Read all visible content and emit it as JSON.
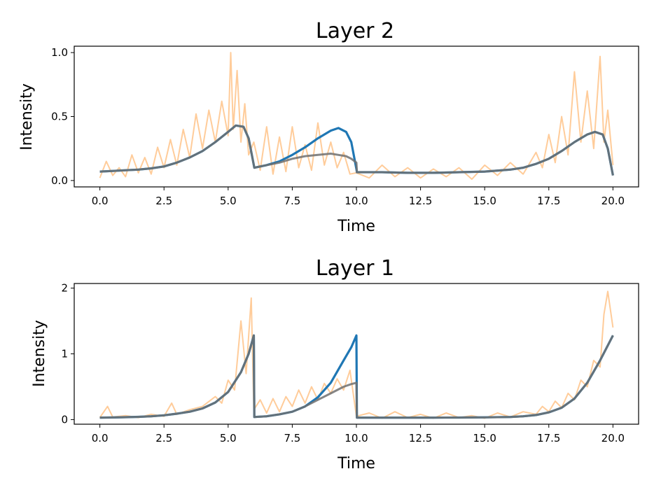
{
  "chart_data": [
    {
      "type": "line",
      "title": "Layer 2",
      "xlabel": "Time",
      "ylabel": "Intensity",
      "xlim": [
        -1.0,
        21.0
      ],
      "ylim": [
        -0.05,
        1.05
      ],
      "xticks": [
        "0.0",
        "2.5",
        "5.0",
        "7.5",
        "10.0",
        "12.5",
        "15.0",
        "17.5",
        "20.0"
      ],
      "yticks": [
        "0.0",
        "0.5",
        "1.0"
      ],
      "grid": false,
      "series": [
        {
          "role": "model",
          "color": "#1f77b4",
          "x": [
            0,
            0.5,
            1,
            1.5,
            2,
            2.5,
            3,
            3.5,
            4,
            4.5,
            5,
            5.3,
            5.6,
            5.8,
            6.0,
            6.02,
            6.5,
            7,
            7.5,
            8,
            8.5,
            9,
            9.3,
            9.6,
            9.8,
            10.0,
            10.02,
            11,
            12,
            13,
            14,
            15,
            16,
            16.5,
            17,
            17.5,
            18,
            18.5,
            19,
            19.3,
            19.6,
            19.8,
            20.0
          ],
          "y": [
            0.07,
            0.075,
            0.08,
            0.085,
            0.095,
            0.11,
            0.14,
            0.18,
            0.23,
            0.3,
            0.38,
            0.43,
            0.42,
            0.33,
            0.12,
            0.1,
            0.12,
            0.15,
            0.2,
            0.26,
            0.33,
            0.39,
            0.41,
            0.38,
            0.3,
            0.09,
            0.065,
            0.065,
            0.06,
            0.06,
            0.065,
            0.07,
            0.085,
            0.1,
            0.13,
            0.17,
            0.23,
            0.3,
            0.36,
            0.38,
            0.36,
            0.25,
            0.04
          ]
        },
        {
          "role": "smoothed",
          "color": "#707070",
          "x": [
            0,
            0.5,
            1,
            1.5,
            2,
            2.5,
            3,
            3.5,
            4,
            4.5,
            5,
            5.3,
            5.6,
            5.8,
            6.0,
            6.02,
            6.5,
            7,
            7.5,
            8,
            8.5,
            9,
            9.3,
            9.6,
            9.8,
            10.0,
            10.02,
            11,
            12,
            13,
            14,
            15,
            16,
            16.5,
            17,
            17.5,
            18,
            18.5,
            19,
            19.3,
            19.6,
            19.8,
            20.0
          ],
          "y": [
            0.07,
            0.075,
            0.08,
            0.085,
            0.095,
            0.11,
            0.14,
            0.18,
            0.23,
            0.3,
            0.38,
            0.43,
            0.42,
            0.33,
            0.12,
            0.1,
            0.12,
            0.14,
            0.17,
            0.19,
            0.2,
            0.21,
            0.2,
            0.19,
            0.17,
            0.14,
            0.065,
            0.065,
            0.06,
            0.06,
            0.065,
            0.07,
            0.085,
            0.1,
            0.13,
            0.17,
            0.23,
            0.3,
            0.36,
            0.38,
            0.36,
            0.25,
            0.04
          ]
        },
        {
          "role": "observed",
          "color": "#ffbb78",
          "x": [
            0,
            0.25,
            0.5,
            0.75,
            1.0,
            1.25,
            1.5,
            1.75,
            2.0,
            2.25,
            2.5,
            2.75,
            3.0,
            3.25,
            3.5,
            3.75,
            4.0,
            4.25,
            4.5,
            4.75,
            5.0,
            5.1,
            5.2,
            5.35,
            5.5,
            5.65,
            5.8,
            6.0,
            6.25,
            6.5,
            6.75,
            7.0,
            7.25,
            7.5,
            7.75,
            8.0,
            8.25,
            8.5,
            8.75,
            9.0,
            9.25,
            9.5,
            9.75,
            10.0,
            10.5,
            11.0,
            11.5,
            12.0,
            12.5,
            13.0,
            13.5,
            14.0,
            14.5,
            15.0,
            15.5,
            16.0,
            16.5,
            17.0,
            17.25,
            17.5,
            17.75,
            18.0,
            18.25,
            18.5,
            18.75,
            19.0,
            19.25,
            19.5,
            19.65,
            19.8,
            20.0
          ],
          "y": [
            0.02,
            0.15,
            0.04,
            0.1,
            0.03,
            0.2,
            0.06,
            0.18,
            0.05,
            0.26,
            0.1,
            0.32,
            0.12,
            0.4,
            0.18,
            0.52,
            0.25,
            0.55,
            0.3,
            0.62,
            0.35,
            1.0,
            0.4,
            0.86,
            0.3,
            0.6,
            0.2,
            0.3,
            0.08,
            0.42,
            0.05,
            0.34,
            0.07,
            0.42,
            0.1,
            0.28,
            0.08,
            0.45,
            0.12,
            0.3,
            0.1,
            0.22,
            0.05,
            0.06,
            0.02,
            0.12,
            0.03,
            0.1,
            0.02,
            0.09,
            0.03,
            0.1,
            0.01,
            0.12,
            0.04,
            0.14,
            0.05,
            0.22,
            0.1,
            0.36,
            0.14,
            0.5,
            0.2,
            0.85,
            0.3,
            0.7,
            0.25,
            0.97,
            0.3,
            0.55,
            0.12
          ]
        }
      ]
    },
    {
      "type": "line",
      "title": "Layer 1",
      "xlabel": "Time",
      "ylabel": "Intensity",
      "xlim": [
        -1.0,
        21.0
      ],
      "ylim": [
        -0.07,
        2.07
      ],
      "xticks": [
        "0.0",
        "2.5",
        "5.0",
        "7.5",
        "10.0",
        "12.5",
        "15.0",
        "17.5",
        "20.0"
      ],
      "yticks": [
        "0",
        "1",
        "2"
      ],
      "grid": false,
      "series": [
        {
          "role": "model",
          "color": "#1f77b4",
          "x": [
            0,
            0.5,
            1,
            1.5,
            2,
            2.5,
            3,
            3.5,
            4,
            4.5,
            5,
            5.5,
            5.8,
            6.0,
            6.02,
            6.5,
            7,
            7.5,
            8,
            8.5,
            9,
            9.5,
            9.8,
            10.0,
            10.02,
            11,
            12,
            13,
            14,
            15,
            16,
            16.5,
            17,
            17.5,
            18,
            18.5,
            19,
            19.5,
            20.0
          ],
          "y": [
            0.03,
            0.032,
            0.036,
            0.042,
            0.05,
            0.065,
            0.09,
            0.12,
            0.17,
            0.26,
            0.42,
            0.72,
            1.0,
            1.28,
            0.04,
            0.05,
            0.08,
            0.12,
            0.2,
            0.34,
            0.56,
            0.9,
            1.1,
            1.28,
            0.03,
            0.03,
            0.03,
            0.03,
            0.031,
            0.034,
            0.04,
            0.05,
            0.07,
            0.11,
            0.18,
            0.32,
            0.56,
            0.9,
            1.28
          ]
        },
        {
          "role": "smoothed",
          "color": "#707070",
          "x": [
            0,
            0.5,
            1,
            1.5,
            2,
            2.5,
            3,
            3.5,
            4,
            4.5,
            5,
            5.5,
            5.8,
            6.0,
            6.02,
            6.5,
            7,
            7.5,
            8,
            8.5,
            9,
            9.5,
            9.8,
            10.0,
            10.02,
            11,
            12,
            13,
            14,
            15,
            16,
            16.5,
            17,
            17.5,
            18,
            18.5,
            19,
            19.5,
            20.0
          ],
          "y": [
            0.03,
            0.032,
            0.036,
            0.042,
            0.05,
            0.065,
            0.09,
            0.12,
            0.17,
            0.26,
            0.42,
            0.72,
            1.0,
            1.28,
            0.04,
            0.05,
            0.08,
            0.12,
            0.2,
            0.3,
            0.4,
            0.5,
            0.54,
            0.56,
            0.03,
            0.03,
            0.03,
            0.03,
            0.031,
            0.034,
            0.04,
            0.05,
            0.07,
            0.11,
            0.18,
            0.32,
            0.56,
            0.9,
            1.28
          ]
        },
        {
          "role": "observed",
          "color": "#ffbb78",
          "x": [
            0,
            0.3,
            0.5,
            1,
            1.5,
            2,
            2.5,
            2.8,
            3,
            3.5,
            4,
            4.5,
            4.75,
            5,
            5.25,
            5.5,
            5.7,
            5.9,
            6.0,
            6.25,
            6.5,
            6.75,
            7,
            7.25,
            7.5,
            7.75,
            8,
            8.25,
            8.5,
            8.75,
            9,
            9.25,
            9.5,
            9.75,
            10.0,
            10.5,
            11,
            11.5,
            12,
            12.5,
            13,
            13.5,
            14,
            14.5,
            15,
            15.5,
            16,
            16.5,
            17,
            17.25,
            17.5,
            17.75,
            18,
            18.25,
            18.5,
            18.75,
            19,
            19.25,
            19.5,
            19.65,
            19.8,
            20.0
          ],
          "y": [
            0.03,
            0.2,
            0.04,
            0.06,
            0.03,
            0.08,
            0.05,
            0.25,
            0.08,
            0.15,
            0.2,
            0.35,
            0.25,
            0.6,
            0.45,
            1.5,
            0.7,
            1.85,
            0.15,
            0.3,
            0.1,
            0.32,
            0.12,
            0.35,
            0.2,
            0.45,
            0.25,
            0.5,
            0.3,
            0.55,
            0.4,
            0.62,
            0.45,
            0.75,
            0.05,
            0.1,
            0.02,
            0.12,
            0.03,
            0.08,
            0.02,
            0.1,
            0.03,
            0.06,
            0.02,
            0.1,
            0.04,
            0.12,
            0.08,
            0.2,
            0.12,
            0.28,
            0.18,
            0.4,
            0.3,
            0.6,
            0.5,
            0.9,
            0.8,
            1.6,
            1.95,
            1.4
          ]
        }
      ]
    }
  ]
}
